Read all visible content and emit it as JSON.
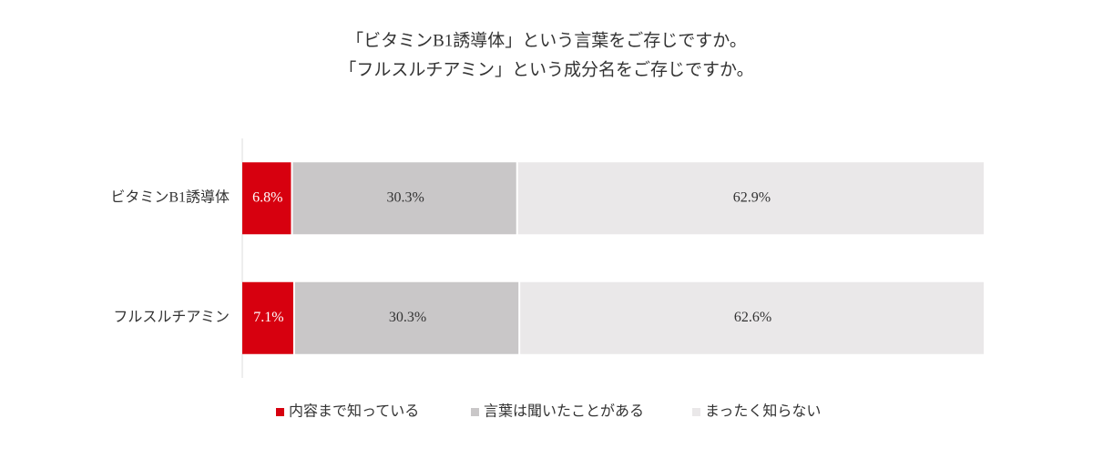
{
  "chart_data": {
    "type": "stacked-bar-horizontal",
    "title_lines": [
      "「ビタミンB1誘導体」という言葉をご存じですか。",
      "「フルスルチアミン」という成分名をご存じですか。"
    ],
    "categories": [
      "ビタミンB1誘導体",
      "フルスルチアミン"
    ],
    "xlim": [
      0,
      100
    ],
    "series": [
      {
        "name": "内容まで知っている",
        "color": "#d7000f",
        "label_color": "#ffffff",
        "values": [
          6.8,
          7.1
        ],
        "value_labels": [
          "6.8%",
          "7.1%"
        ]
      },
      {
        "name": "言葉は聞いたことがある",
        "color": "#c9c7c8",
        "label_color": "#333333",
        "values": [
          30.3,
          30.3
        ],
        "value_labels": [
          "30.3%",
          "30.3%"
        ]
      },
      {
        "name": "まったく知らない",
        "color": "#eae8e9",
        "label_color": "#333333",
        "values": [
          62.9,
          62.6
        ],
        "value_labels": [
          "62.9%",
          "62.6%"
        ]
      }
    ]
  }
}
